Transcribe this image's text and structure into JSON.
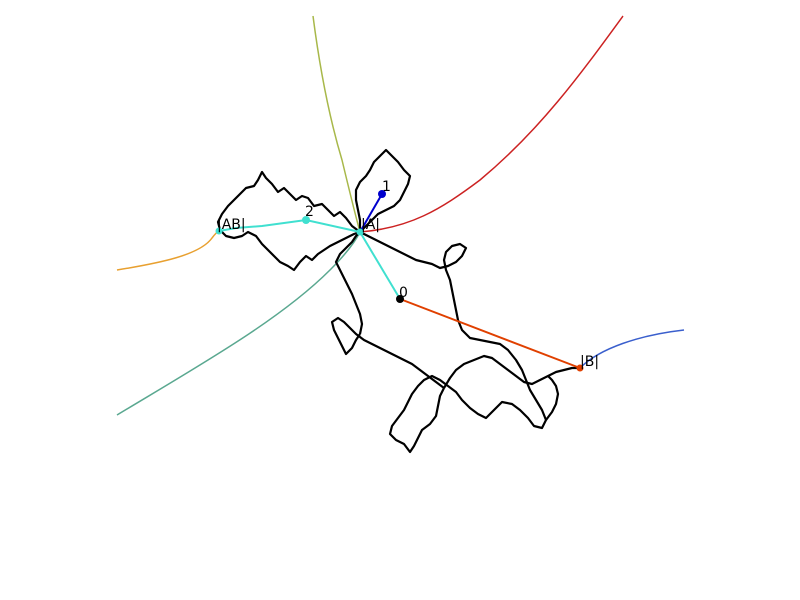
{
  "labels": {
    "point0": "0",
    "point1": "1",
    "point2": "2",
    "pointA": "|A|",
    "pointB": "|B|",
    "pointAB": "|AB|"
  },
  "colors": {
    "background": "#ffffff",
    "julia_set": "#000000",
    "cyan_path": "#40e0d0",
    "blue_segment": "#0000cd",
    "orange_segment": "#e04000",
    "olive_ray": "#a8b84a",
    "red_ray": "#cc2222",
    "orange_ray": "#e8a030",
    "teal_ray": "#5aa890",
    "blue_ray": "#3a5fcd"
  }
}
